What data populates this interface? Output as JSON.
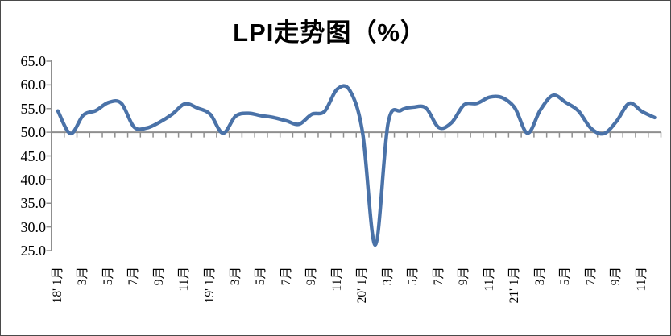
{
  "title": "LPI走势图（%）",
  "chart_data": {
    "type": "line",
    "title": "LPI走势图（%）",
    "unit": "%",
    "start_month": "2018-01",
    "frequency": "monthly",
    "ylim": [
      25.0,
      65.0
    ],
    "ytick_interval": 5.0,
    "ytick_labels": [
      "65.0",
      "60.0",
      "55.0",
      "50.0",
      "45.0",
      "40.0",
      "35.0",
      "30.0",
      "25.0"
    ],
    "xtick_labels": [
      "18' 1月",
      "3月",
      "5月",
      "7月",
      "9月",
      "11月",
      "19' 1月",
      "3月",
      "5月",
      "7月",
      "9月",
      "11月",
      "20' 1月",
      "3月",
      "5月",
      "7月",
      "9月",
      "11月",
      "21' 1月",
      "3月",
      "5月",
      "7月",
      "9月",
      "11月"
    ],
    "months_per_xtick_label": 2,
    "x_axis_cross_value": 50.0,
    "grid": false,
    "legend_position": "none",
    "smooth_line": true,
    "line_color": "#4a72a8",
    "axis_color": "#8f8f8f",
    "series": [
      {
        "name": "LPI",
        "values": [
          54.5,
          49.7,
          53.6,
          54.6,
          56.3,
          56.1,
          51.1,
          50.9,
          52.1,
          53.8,
          56.0,
          55.1,
          53.8,
          49.8,
          53.4,
          54.0,
          53.5,
          53.1,
          52.4,
          51.7,
          53.8,
          54.4,
          59.1,
          58.8,
          49.9,
          26.2,
          51.8,
          54.6,
          55.3,
          55.1,
          51.0,
          52.0,
          55.8,
          56.1,
          57.4,
          57.3,
          55.1,
          49.8,
          54.7,
          57.8,
          56.3,
          54.5,
          50.8,
          49.7,
          52.3,
          56.1,
          54.4,
          53.1
        ]
      }
    ]
  }
}
